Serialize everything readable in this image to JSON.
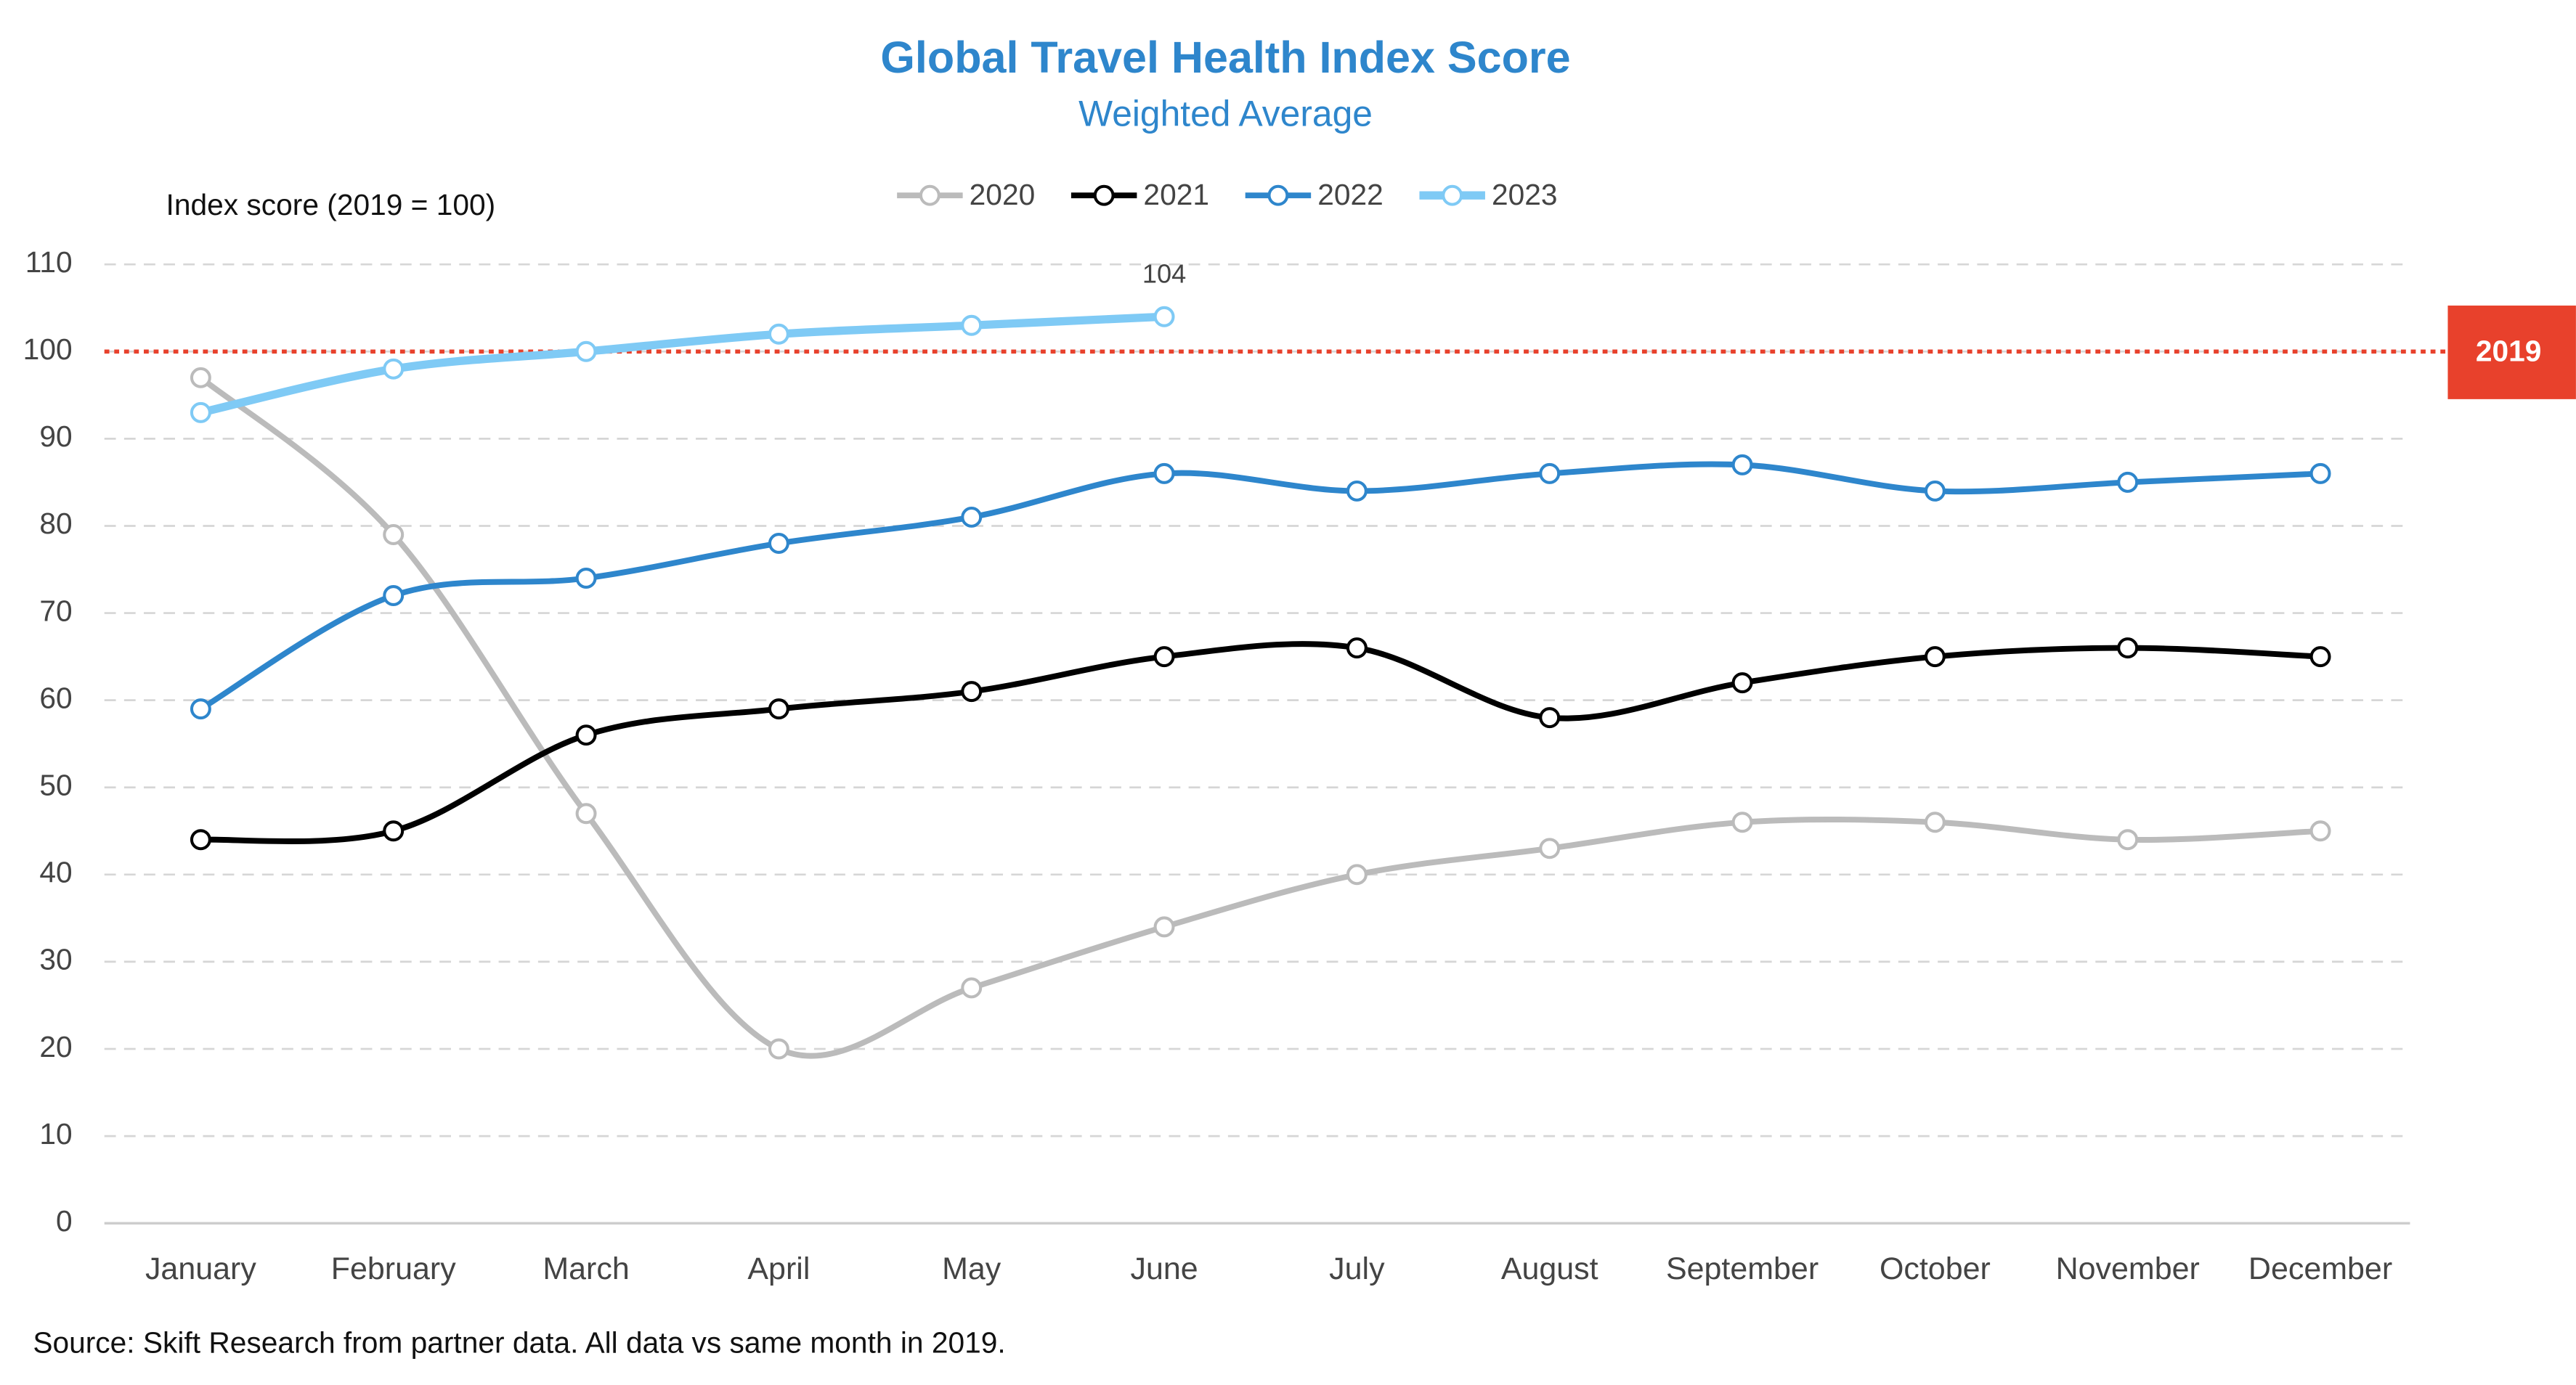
{
  "chart_data": {
    "type": "line",
    "title": "Global Travel Health Index Score",
    "subtitle": "Weighted Average",
    "y_axis_label": "Index score (2019 = 100)",
    "source": "Source: Skift Research from partner data. All data vs same month in 2019.",
    "categories": [
      "January",
      "February",
      "March",
      "April",
      "May",
      "June",
      "July",
      "August",
      "September",
      "October",
      "November",
      "December"
    ],
    "series": [
      {
        "name": "2020",
        "color": "#bbbbbb",
        "values": [
          97,
          79,
          47,
          20,
          27,
          34,
          40,
          43,
          46,
          46,
          44,
          45
        ]
      },
      {
        "name": "2021",
        "color": "#000000",
        "values": [
          44,
          45,
          56,
          59,
          61,
          65,
          66,
          58,
          62,
          65,
          66,
          65
        ]
      },
      {
        "name": "2022",
        "color": "#2e86cc",
        "values": [
          59,
          72,
          74,
          78,
          81,
          86,
          84,
          86,
          87,
          84,
          85,
          86
        ]
      },
      {
        "name": "2023",
        "color": "#7fcaf5",
        "values": [
          93,
          98,
          100,
          102,
          103,
          104,
          null,
          null,
          null,
          null,
          null,
          null
        ],
        "value_label_index": 5
      }
    ],
    "reference_line": {
      "value": 100,
      "label": "2019",
      "color": "#e8412c"
    },
    "ylim": [
      0,
      110
    ],
    "yticks": [
      0,
      10,
      20,
      30,
      40,
      50,
      60,
      70,
      80,
      90,
      100,
      110
    ],
    "grid": true,
    "legend": "top"
  }
}
